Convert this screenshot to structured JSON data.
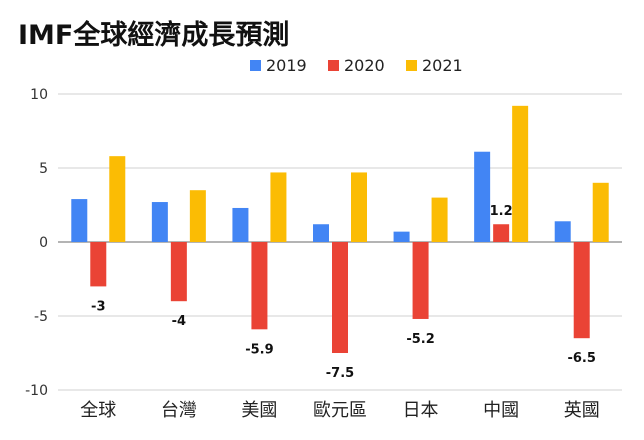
{
  "chart_data": {
    "type": "bar",
    "title": "IMF全球經濟成長預測",
    "categories": [
      "全球",
      "台灣",
      "美國",
      "歐元區",
      "日本",
      "中國",
      "英國"
    ],
    "series": [
      {
        "name": "2019",
        "color": "#4285f4",
        "values": [
          2.9,
          2.7,
          2.3,
          1.2,
          0.7,
          6.1,
          1.4
        ]
      },
      {
        "name": "2020",
        "color": "#ea4335",
        "values": [
          -3,
          -4,
          -5.9,
          -7.5,
          -5.2,
          1.2,
          -6.5
        ]
      },
      {
        "name": "2021",
        "color": "#fbbc04",
        "values": [
          5.8,
          3.5,
          4.7,
          4.7,
          3.0,
          9.2,
          4.0
        ]
      }
    ],
    "data_labels": [
      {
        "series": 1,
        "index": 0,
        "text": "-3"
      },
      {
        "series": 1,
        "index": 1,
        "text": "-4"
      },
      {
        "series": 1,
        "index": 2,
        "text": "-5.9"
      },
      {
        "series": 1,
        "index": 3,
        "text": "-7.5"
      },
      {
        "series": 1,
        "index": 4,
        "text": "-5.2"
      },
      {
        "series": 1,
        "index": 5,
        "text": "1.2"
      },
      {
        "series": 1,
        "index": 6,
        "text": "-6.5"
      }
    ],
    "ylim": [
      -10,
      10
    ],
    "yticks": [
      -10,
      -5,
      0,
      5,
      10
    ],
    "grid": true,
    "legend_position": "top-center",
    "xlabel": "",
    "ylabel": ""
  }
}
